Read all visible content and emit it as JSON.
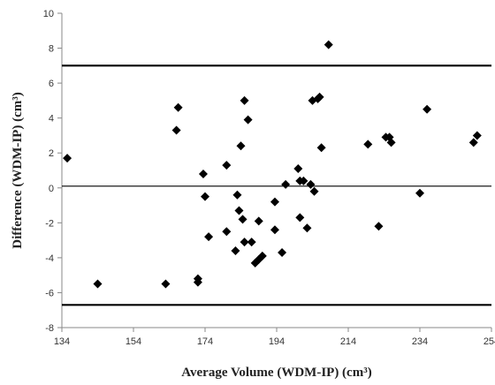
{
  "chart_data": {
    "type": "scatter",
    "title": "",
    "xlabel": "Average Volume (WDM-IP) (cm³)",
    "ylabel": "Difference (WDM-IP) (cm³)",
    "xlim": [
      134,
      254
    ],
    "ylim": [
      -8,
      10
    ],
    "x_ticks": [
      134,
      154,
      174,
      194,
      214,
      234,
      254
    ],
    "y_ticks": [
      -8,
      -6,
      -4,
      -2,
      0,
      2,
      4,
      6,
      8,
      10
    ],
    "x_tick_labels": [
      "134",
      "154",
      "174",
      "194",
      "214",
      "234",
      "254"
    ],
    "y_tick_labels": [
      "-8",
      "-6",
      "-4",
      "-2",
      "0",
      "2",
      "4",
      "6",
      "8",
      "10"
    ],
    "grid": false,
    "marker": "diamond",
    "marker_color": "#000000",
    "reference_lines": [
      {
        "y": 7.0,
        "style": "thick"
      },
      {
        "y": 0.1,
        "style": "thin"
      },
      {
        "y": -6.7,
        "style": "thick"
      }
    ],
    "series": [
      {
        "points": [
          [
            135.5,
            1.7
          ],
          [
            144,
            -5.5
          ],
          [
            163,
            -5.5
          ],
          [
            166,
            3.3
          ],
          [
            166.5,
            4.6
          ],
          [
            172,
            -5.2
          ],
          [
            172,
            -5.4
          ],
          [
            173.5,
            0.8
          ],
          [
            174,
            -0.5
          ],
          [
            175,
            -2.8
          ],
          [
            180,
            1.3
          ],
          [
            180,
            -2.5
          ],
          [
            182.5,
            -3.6
          ],
          [
            183,
            -0.4
          ],
          [
            183.5,
            -1.3
          ],
          [
            184,
            2.4
          ],
          [
            184.5,
            -1.8
          ],
          [
            185,
            5.0
          ],
          [
            185,
            -3.1
          ],
          [
            186,
            3.9
          ],
          [
            187,
            -3.1
          ],
          [
            188,
            -4.3
          ],
          [
            189,
            -1.9
          ],
          [
            189,
            -4.1
          ],
          [
            190,
            -3.9
          ],
          [
            193.5,
            -0.8
          ],
          [
            193.5,
            -2.4
          ],
          [
            195.5,
            -3.7
          ],
          [
            196.5,
            0.2
          ],
          [
            200,
            1.1
          ],
          [
            200.5,
            0.4
          ],
          [
            200.5,
            -1.7
          ],
          [
            201.5,
            0.4
          ],
          [
            202.5,
            -2.3
          ],
          [
            203.5,
            0.2
          ],
          [
            204,
            5.0
          ],
          [
            204.5,
            -0.2
          ],
          [
            205.5,
            5.1
          ],
          [
            206,
            5.2
          ],
          [
            206.5,
            2.3
          ],
          [
            208.5,
            8.2
          ],
          [
            219.5,
            2.5
          ],
          [
            222.5,
            -2.2
          ],
          [
            224.5,
            2.9
          ],
          [
            225.5,
            2.9
          ],
          [
            226,
            2.6
          ],
          [
            234,
            -0.3
          ],
          [
            236,
            4.5
          ],
          [
            249,
            2.6
          ],
          [
            250,
            3.0
          ]
        ]
      }
    ]
  }
}
